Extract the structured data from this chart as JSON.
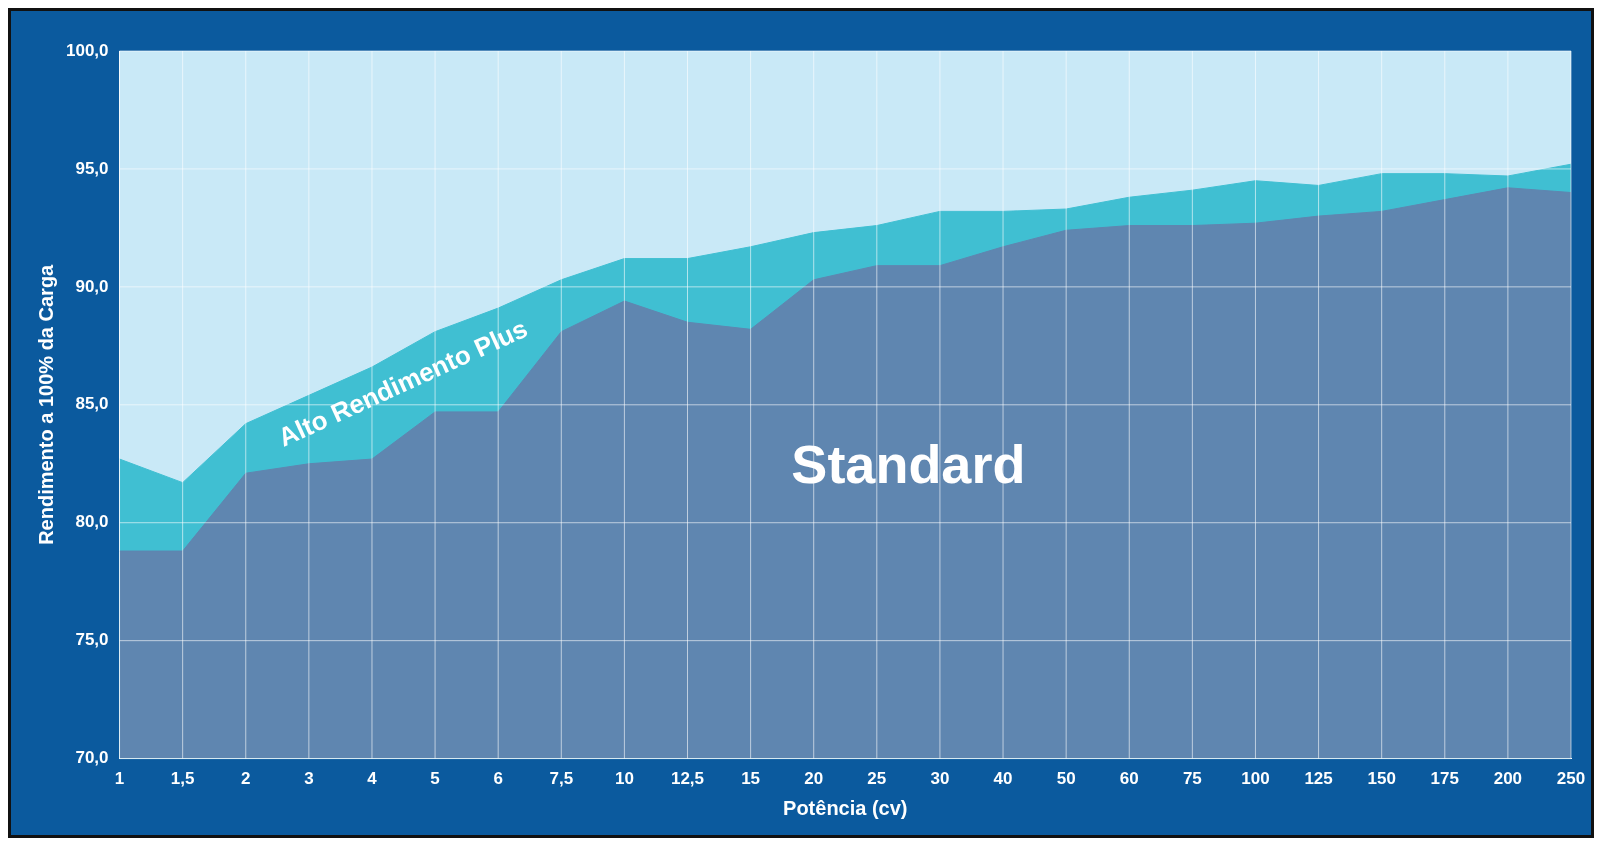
{
  "chart_data": {
    "type": "area",
    "xlabel": "Potência (cv)",
    "ylabel": "Rendimento a 100% da Carga",
    "categories": [
      "1",
      "1,5",
      "2",
      "3",
      "4",
      "5",
      "6",
      "7,5",
      "10",
      "12,5",
      "15",
      "20",
      "25",
      "30",
      "40",
      "50",
      "60",
      "75",
      "100",
      "125",
      "150",
      "175",
      "200",
      "250"
    ],
    "series": [
      {
        "name": "Standard",
        "color": "#5f86b0",
        "values": [
          78.8,
          78.8,
          82.1,
          82.5,
          82.7,
          84.7,
          84.7,
          88.1,
          89.4,
          88.5,
          88.2,
          90.3,
          90.9,
          90.9,
          91.7,
          92.4,
          92.6,
          92.6,
          92.7,
          93.0,
          93.2,
          93.7,
          94.2,
          94.0
        ]
      },
      {
        "name": "Alto Rendimento Plus",
        "color": "#40bfd2",
        "values": [
          82.7,
          81.7,
          84.2,
          85.4,
          86.6,
          88.1,
          89.1,
          90.3,
          91.2,
          91.2,
          91.7,
          92.3,
          92.6,
          93.2,
          93.2,
          93.3,
          93.8,
          94.1,
          94.5,
          94.3,
          94.8,
          94.8,
          94.7,
          95.2
        ]
      }
    ],
    "ylim": [
      70,
      100
    ],
    "yticks": [
      {
        "value": 70,
        "label": "70,0"
      },
      {
        "value": 75,
        "label": "75,0"
      },
      {
        "value": 80,
        "label": "80,0"
      },
      {
        "value": 85,
        "label": "85,0"
      },
      {
        "value": 90,
        "label": "90,0"
      },
      {
        "value": 95,
        "label": "95,0"
      },
      {
        "value": 100,
        "label": "100,0"
      }
    ],
    "bands": [
      {
        "axis": "y",
        "from": 70,
        "to": 100,
        "color": "#c9e9f7"
      }
    ],
    "grid": true,
    "legend": false
  }
}
